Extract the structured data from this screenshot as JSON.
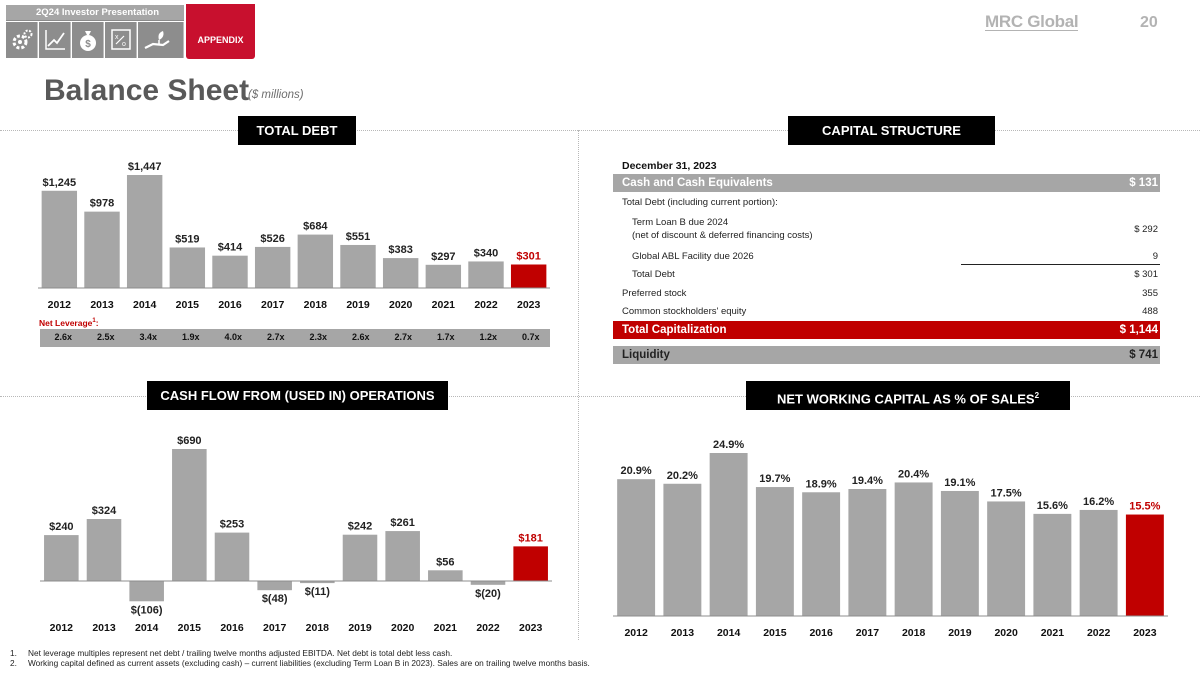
{
  "header": {
    "presentation_label": "2Q24  Investor Presentation",
    "appendix_label": "APPENDIX",
    "logo_text": "MRC Global",
    "page_number": "20",
    "nav_icons": [
      "gears-icon",
      "growth-chart-icon",
      "money-bag-icon",
      "strategy-board-icon",
      "hand-plant-icon"
    ],
    "accent_color": "#c8102e"
  },
  "title": "Balance Sheet",
  "subtitle": "($ millions)",
  "sections": {
    "total_debt": "TOTAL DEBT",
    "capital_structure": "CAPITAL STRUCTURE",
    "cash_flow": "CASH FLOW FROM (USED IN) OPERATIONS",
    "nwc_text": "NET WORKING CAPITAL AS % OF SALES",
    "nwc_sup": "2"
  },
  "net_leverage": {
    "label": "Net Leverage",
    "sup": "1",
    "suffix": ":",
    "values": [
      "2.6x",
      "2.5x",
      "3.4x",
      "1.9x",
      "4.0x",
      "2.7x",
      "2.3x",
      "2.6x",
      "2.7x",
      "1.7x",
      "1.2x",
      "0.7x"
    ]
  },
  "capital_table": {
    "date": "December 31, 2023",
    "rows": [
      {
        "label": "Cash and Cash Equivalents",
        "value": "$ 131"
      },
      {
        "label": "Total Debt (including current portion):",
        "value": ""
      },
      {
        "label": "Term Loan B due 2024",
        "label2": "(net of discount & deferred financing costs)",
        "value": "$ 292"
      },
      {
        "label": "Global ABL Facility due 2026",
        "value": "9"
      },
      {
        "label": "Total Debt",
        "value": "$ 301"
      },
      {
        "label": "Preferred stock",
        "value": "355"
      },
      {
        "label": "Common stockholders' equity",
        "value": "488"
      },
      {
        "label": "Total Capitalization",
        "value": "$ 1,144"
      },
      {
        "label": "Liquidity",
        "value": "$ 741"
      }
    ]
  },
  "chart_data": [
    {
      "type": "bar",
      "title": "TOTAL DEBT",
      "categories": [
        "2012",
        "2013",
        "2014",
        "2015",
        "2016",
        "2017",
        "2018",
        "2019",
        "2020",
        "2021",
        "2022",
        "2023"
      ],
      "values": [
        1245,
        978,
        1447,
        519,
        414,
        526,
        684,
        551,
        383,
        297,
        340,
        301
      ],
      "labels": [
        "$1,245",
        "$978",
        "$1,447",
        "$519",
        "$414",
        "$526",
        "$684",
        "$551",
        "$383",
        "$297",
        "$340",
        "$301"
      ],
      "ylim": [
        0,
        1447
      ],
      "bar_color": "#a6a6a6",
      "highlight_color": "#c00000",
      "highlight_index": 11
    },
    {
      "type": "bar",
      "title": "CASH FLOW FROM (USED IN) OPERATIONS",
      "categories": [
        "2012",
        "2013",
        "2014",
        "2015",
        "2016",
        "2017",
        "2018",
        "2019",
        "2020",
        "2021",
        "2022",
        "2023"
      ],
      "values": [
        240,
        324,
        -106,
        690,
        253,
        -48,
        -11,
        242,
        261,
        56,
        -20,
        181
      ],
      "labels": [
        "$240",
        "$324",
        "$(106)",
        "$690",
        "$253",
        "$(48)",
        "$(11)",
        "$242",
        "$261",
        "$56",
        "$(20)",
        "$181"
      ],
      "ylim": [
        -106,
        690
      ],
      "bar_color": "#a6a6a6",
      "highlight_color": "#c00000",
      "highlight_index": 11
    },
    {
      "type": "bar",
      "title": "NET WORKING CAPITAL AS % OF SALES",
      "categories": [
        "2012",
        "2013",
        "2014",
        "2015",
        "2016",
        "2017",
        "2018",
        "2019",
        "2020",
        "2021",
        "2022",
        "2023"
      ],
      "values": [
        20.9,
        20.2,
        24.9,
        19.7,
        18.9,
        19.4,
        20.4,
        19.1,
        17.5,
        15.6,
        16.2,
        15.5
      ],
      "labels": [
        "20.9%",
        "20.2%",
        "24.9%",
        "19.7%",
        "18.9%",
        "19.4%",
        "20.4%",
        "19.1%",
        "17.5%",
        "15.6%",
        "16.2%",
        "15.5%"
      ],
      "ylim": [
        0,
        24.9
      ],
      "bar_color": "#a6a6a6",
      "highlight_color": "#c00000",
      "highlight_index": 11
    }
  ],
  "footnotes": [
    {
      "num": "1.",
      "text": "Net leverage multiples represent net debt / trailing twelve months adjusted EBITDA. Net debt is total debt less cash."
    },
    {
      "num": "2.",
      "text": "Working capital defined as current assets (excluding cash) – current liabilities (excluding Term Loan B in 2023). Sales are on trailing twelve months basis."
    }
  ]
}
